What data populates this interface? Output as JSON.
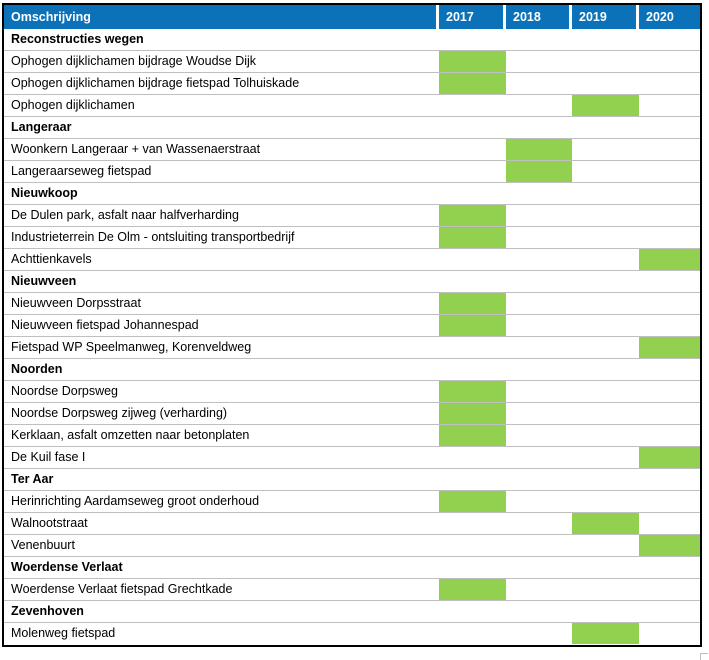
{
  "header": {
    "description_label": "Omschrijving",
    "years": [
      "2017",
      "2018",
      "2019",
      "2020"
    ]
  },
  "colors": {
    "header_bg": "#0B72B9",
    "header_text": "#FFFFFF",
    "bar": "#92D050",
    "gridline": "#BFBFBF",
    "border": "#000000"
  },
  "chart_data": {
    "type": "table",
    "subtype": "gantt",
    "title": "",
    "columns": [
      "Omschrijving",
      "2017",
      "2018",
      "2019",
      "2020"
    ],
    "groups": [
      {
        "name": "Reconstructies wegen",
        "items": [
          {
            "name": "Ophogen dijklichamen bijdrage Woudse Dijk",
            "year": "2017"
          },
          {
            "name": "Ophogen dijklichamen bijdrage fietspad Tolhuiskade",
            "year": "2017"
          },
          {
            "name": "Ophogen dijklichamen",
            "year": "2019"
          }
        ]
      },
      {
        "name": "Langeraar",
        "items": [
          {
            "name": "Woonkern Langeraar + van Wassenaerstraat",
            "year": "2018"
          },
          {
            "name": "Langeraarseweg fietspad",
            "year": "2018"
          }
        ]
      },
      {
        "name": "Nieuwkoop",
        "items": [
          {
            "name": "De Dulen park, asfalt naar halfverharding",
            "year": "2017"
          },
          {
            "name": "Industrieterrein De Olm -  ontsluiting transportbedrijf",
            "year": "2017"
          },
          {
            "name": "Achttienkavels",
            "year": "2020"
          }
        ]
      },
      {
        "name": "Nieuwveen",
        "items": [
          {
            "name": "Nieuwveen Dorpsstraat",
            "year": "2017"
          },
          {
            "name": "Nieuwveen fietspad Johannespad",
            "year": "2017"
          },
          {
            "name": "Fietspad WP Speelmanweg, Korenveldweg",
            "year": "2020"
          }
        ]
      },
      {
        "name": "Noorden",
        "items": [
          {
            "name": "Noordse Dorpsweg",
            "year": "2017"
          },
          {
            "name": "Noordse Dorpsweg zijweg (verharding)",
            "year": "2017"
          },
          {
            "name": "Kerklaan, asfalt omzetten naar betonplaten",
            "year": "2017"
          },
          {
            "name": "De Kuil fase I",
            "year": "2020"
          }
        ]
      },
      {
        "name": "Ter Aar",
        "items": [
          {
            "name": "Herinrichting Aardamseweg groot onderhoud",
            "year": "2017"
          },
          {
            "name": "Walnootstraat",
            "year": "2019"
          },
          {
            "name": "Venenbuurt",
            "year": "2020"
          }
        ]
      },
      {
        "name": "Woerdense Verlaat",
        "items": [
          {
            "name": "Woerdense Verlaat fietspad Grechtkade",
            "year": "2017"
          }
        ]
      },
      {
        "name": "Zevenhoven",
        "items": [
          {
            "name": "Molenweg fietspad",
            "year": "2019"
          }
        ]
      }
    ]
  }
}
